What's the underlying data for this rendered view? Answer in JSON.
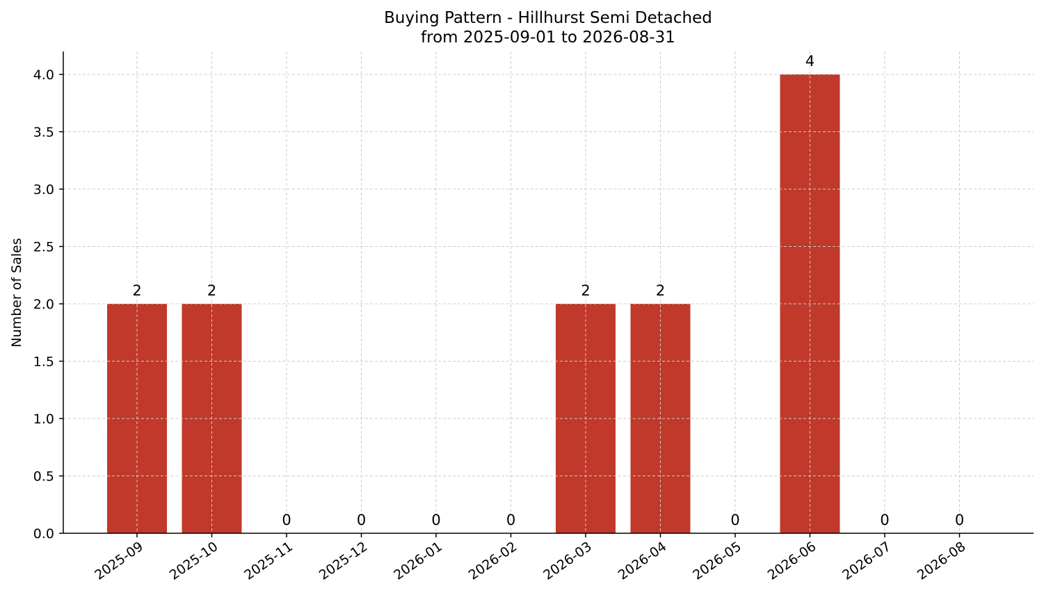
{
  "chart_data": {
    "type": "bar",
    "title": "Buying Pattern - Hillhurst Semi Detached",
    "subtitle": "from 2025-09-01 to 2026-08-31",
    "xlabel": "",
    "ylabel": "Number of Sales",
    "categories": [
      "2025-09",
      "2025-10",
      "2025-11",
      "2025-12",
      "2026-01",
      "2026-02",
      "2026-03",
      "2026-04",
      "2026-05",
      "2026-06",
      "2026-07",
      "2026-08"
    ],
    "values": [
      2,
      2,
      0,
      0,
      0,
      0,
      2,
      2,
      0,
      4,
      0,
      0
    ],
    "data_labels": [
      "2",
      "2",
      "0",
      "0",
      "0",
      "0",
      "2",
      "2",
      "0",
      "4",
      "0",
      "0"
    ],
    "ylim": [
      0,
      4.2
    ],
    "yticks": [
      0.0,
      0.5,
      1.0,
      1.5,
      2.0,
      2.5,
      3.0,
      3.5,
      4.0
    ],
    "ytick_labels": [
      "0.0",
      "0.5",
      "1.0",
      "1.5",
      "2.0",
      "2.5",
      "3.0",
      "3.5",
      "4.0"
    ],
    "bar_color": "#c0392b",
    "grid": true,
    "legend": "none"
  }
}
